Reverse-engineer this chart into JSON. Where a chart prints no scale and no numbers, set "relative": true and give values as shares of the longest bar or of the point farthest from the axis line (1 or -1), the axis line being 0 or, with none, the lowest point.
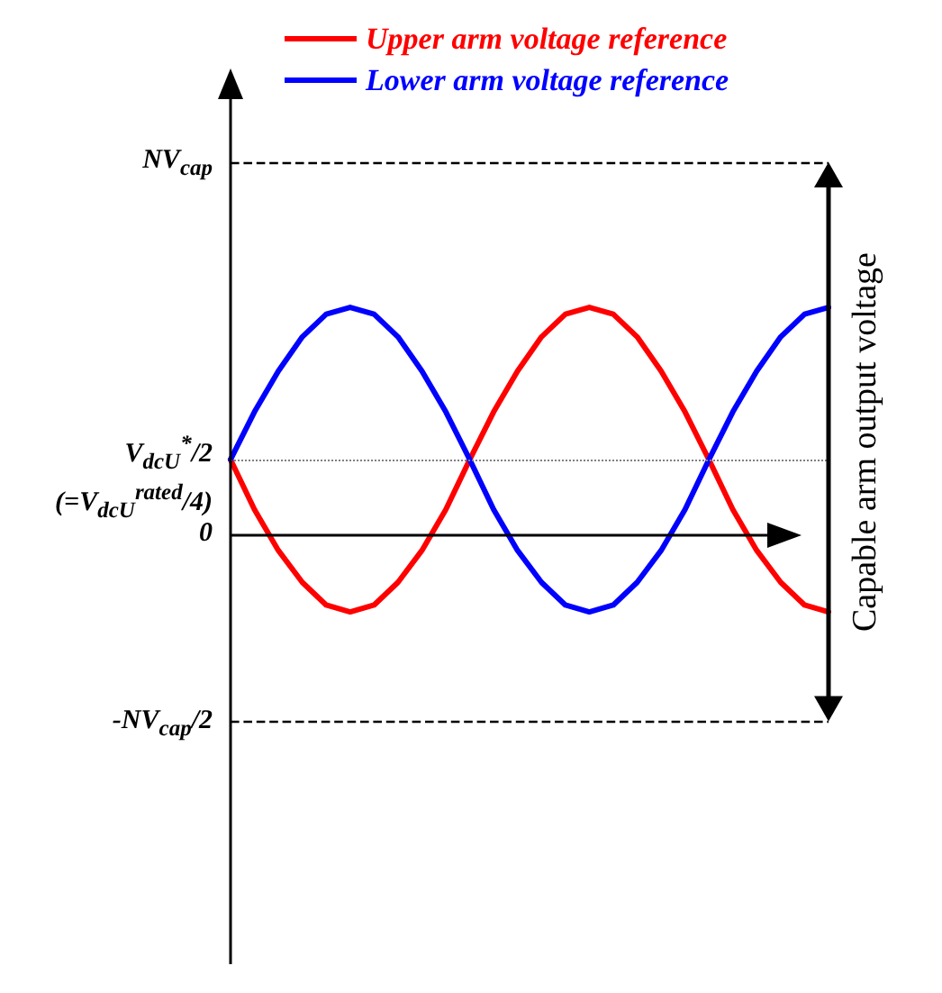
{
  "chart_data": {
    "type": "line",
    "relative": true,
    "legend": "top",
    "marker": "none",
    "line_style": "solid",
    "grid": false,
    "categories": [
      null,
      null,
      null,
      null,
      null,
      null,
      null,
      null,
      null,
      null,
      null,
      null,
      null,
      null,
      null,
      null,
      null,
      null,
      null,
      null,
      null,
      null,
      null,
      null,
      null,
      null
    ],
    "series": [
      {
        "name": "Upper arm voltage reference",
        "color": "#ff0000",
        "values": [
          0.33,
          0.11,
          -0.07,
          -0.21,
          -0.31,
          -0.34,
          -0.31,
          -0.21,
          -0.07,
          0.11,
          0.33,
          0.54,
          0.72,
          0.87,
          0.97,
          1,
          0.97,
          0.87,
          0.72,
          0.54,
          0.33,
          0.11,
          -0.07,
          -0.21,
          -0.31,
          -0.34
        ]
      },
      {
        "name": "Lower arm voltage reference",
        "color": "#0000ff",
        "values": [
          0.33,
          0.54,
          0.72,
          0.87,
          0.97,
          1,
          0.97,
          0.87,
          0.72,
          0.54,
          0.33,
          0.11,
          -0.07,
          -0.21,
          -0.31,
          -0.34,
          -0.31,
          -0.21,
          -0.07,
          0.11,
          0.33,
          0.54,
          0.72,
          0.87,
          0.97,
          1
        ]
      }
    ],
    "ref_lines": [
      {
        "axis": "y",
        "value": 1.64,
        "label": "NV$_{cap}$",
        "color": "#000000",
        "line_style": "dashed"
      },
      {
        "axis": "y",
        "value": 0.33,
        "label": "V$_{dcU}$$^{*}$/2\n(=V$_{dcU}$$^{rated}$/4)",
        "color": "#808080",
        "line_style": "dotted"
      },
      {
        "axis": "y",
        "value": -0.82,
        "label": "-NV$_{cap}$/2",
        "color": "#000000",
        "line_style": "dashed"
      }
    ],
    "annotations": [
      "0",
      "Capable arm output voltage"
    ]
  }
}
